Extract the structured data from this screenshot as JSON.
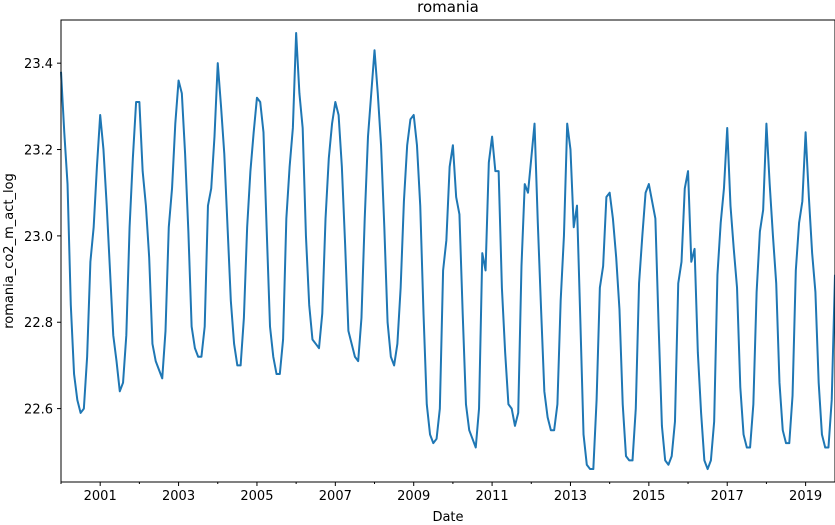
{
  "chart_data": {
    "type": "line",
    "title": "romania",
    "xlabel": "Date",
    "ylabel": "romania_co2_m_act_log",
    "xlim": [
      "2000-01",
      "2019-10"
    ],
    "ylim": [
      22.43,
      23.5
    ],
    "grid": false,
    "legend": "none",
    "line_color": "#1f77b4",
    "x_ticks": [
      2001,
      2003,
      2005,
      2007,
      2009,
      2011,
      2013,
      2015,
      2017,
      2019
    ],
    "y_ticks": [
      22.6,
      22.8,
      23.0,
      23.2,
      23.4
    ],
    "y_tick_labels": [
      "22.6",
      "22.8",
      "23.0",
      "23.2",
      "23.4"
    ],
    "series": [
      {
        "start": "2000-01",
        "frequency": "monthly",
        "values": [
          23.38,
          23.24,
          23.12,
          22.84,
          22.68,
          22.62,
          22.59,
          22.6,
          22.72,
          22.94,
          23.02,
          23.16,
          23.28,
          23.2,
          23.07,
          22.92,
          22.77,
          22.71,
          22.64,
          22.66,
          22.77,
          23.02,
          23.18,
          23.31,
          23.31,
          23.15,
          23.07,
          22.95,
          22.75,
          22.71,
          22.69,
          22.67,
          22.78,
          23.02,
          23.11,
          23.26,
          23.36,
          23.33,
          23.19,
          23.01,
          22.79,
          22.74,
          22.72,
          22.72,
          22.79,
          23.07,
          23.11,
          23.23,
          23.4,
          23.3,
          23.19,
          23.02,
          22.85,
          22.75,
          22.7,
          22.7,
          22.81,
          23.02,
          23.15,
          23.24,
          23.32,
          23.31,
          23.24,
          23.01,
          22.79,
          22.72,
          22.68,
          22.68,
          22.76,
          23.04,
          23.16,
          23.25,
          23.47,
          23.33,
          23.25,
          23.0,
          22.84,
          22.76,
          22.75,
          22.74,
          22.82,
          23.04,
          23.18,
          23.26,
          23.31,
          23.28,
          23.16,
          22.98,
          22.78,
          22.75,
          22.72,
          22.71,
          22.81,
          23.04,
          23.23,
          23.33,
          23.43,
          23.33,
          23.21,
          23.02,
          22.8,
          22.72,
          22.7,
          22.75,
          22.88,
          23.08,
          23.21,
          23.27,
          23.28,
          23.21,
          23.07,
          22.82,
          22.61,
          22.54,
          22.52,
          22.53,
          22.6,
          22.92,
          22.99,
          23.16,
          23.21,
          23.09,
          23.05,
          22.82,
          22.61,
          22.55,
          22.53,
          22.51,
          22.6,
          22.96,
          22.92,
          23.17,
          23.23,
          23.15,
          23.15,
          22.88,
          22.73,
          22.61,
          22.6,
          22.56,
          22.59,
          22.93,
          23.12,
          23.1,
          23.18,
          23.26,
          23.03,
          22.83,
          22.64,
          22.58,
          22.55,
          22.55,
          22.61,
          22.85,
          23.0,
          23.26,
          23.2,
          23.02,
          23.07,
          22.81,
          22.54,
          22.47,
          22.46,
          22.46,
          22.62,
          22.88,
          22.93,
          23.09,
          23.1,
          23.04,
          22.95,
          22.83,
          22.61,
          22.49,
          22.48,
          22.48,
          22.6,
          22.89,
          23.0,
          23.1,
          23.12,
          23.08,
          23.04,
          22.79,
          22.56,
          22.48,
          22.47,
          22.49,
          22.57,
          22.89,
          22.94,
          23.11,
          23.15,
          22.94,
          22.97,
          22.73,
          22.59,
          22.48,
          22.46,
          22.48,
          22.57,
          22.91,
          23.03,
          23.11,
          23.25,
          23.07,
          22.97,
          22.88,
          22.65,
          22.54,
          22.51,
          22.51,
          22.61,
          22.87,
          23.01,
          23.06,
          23.26,
          23.12,
          23.0,
          22.89,
          22.66,
          22.55,
          22.52,
          22.52,
          22.63,
          22.92,
          23.03,
          23.08,
          23.24,
          23.09,
          22.96,
          22.87,
          22.66,
          22.54,
          22.51,
          22.51,
          22.62,
          22.91
        ]
      }
    ]
  }
}
